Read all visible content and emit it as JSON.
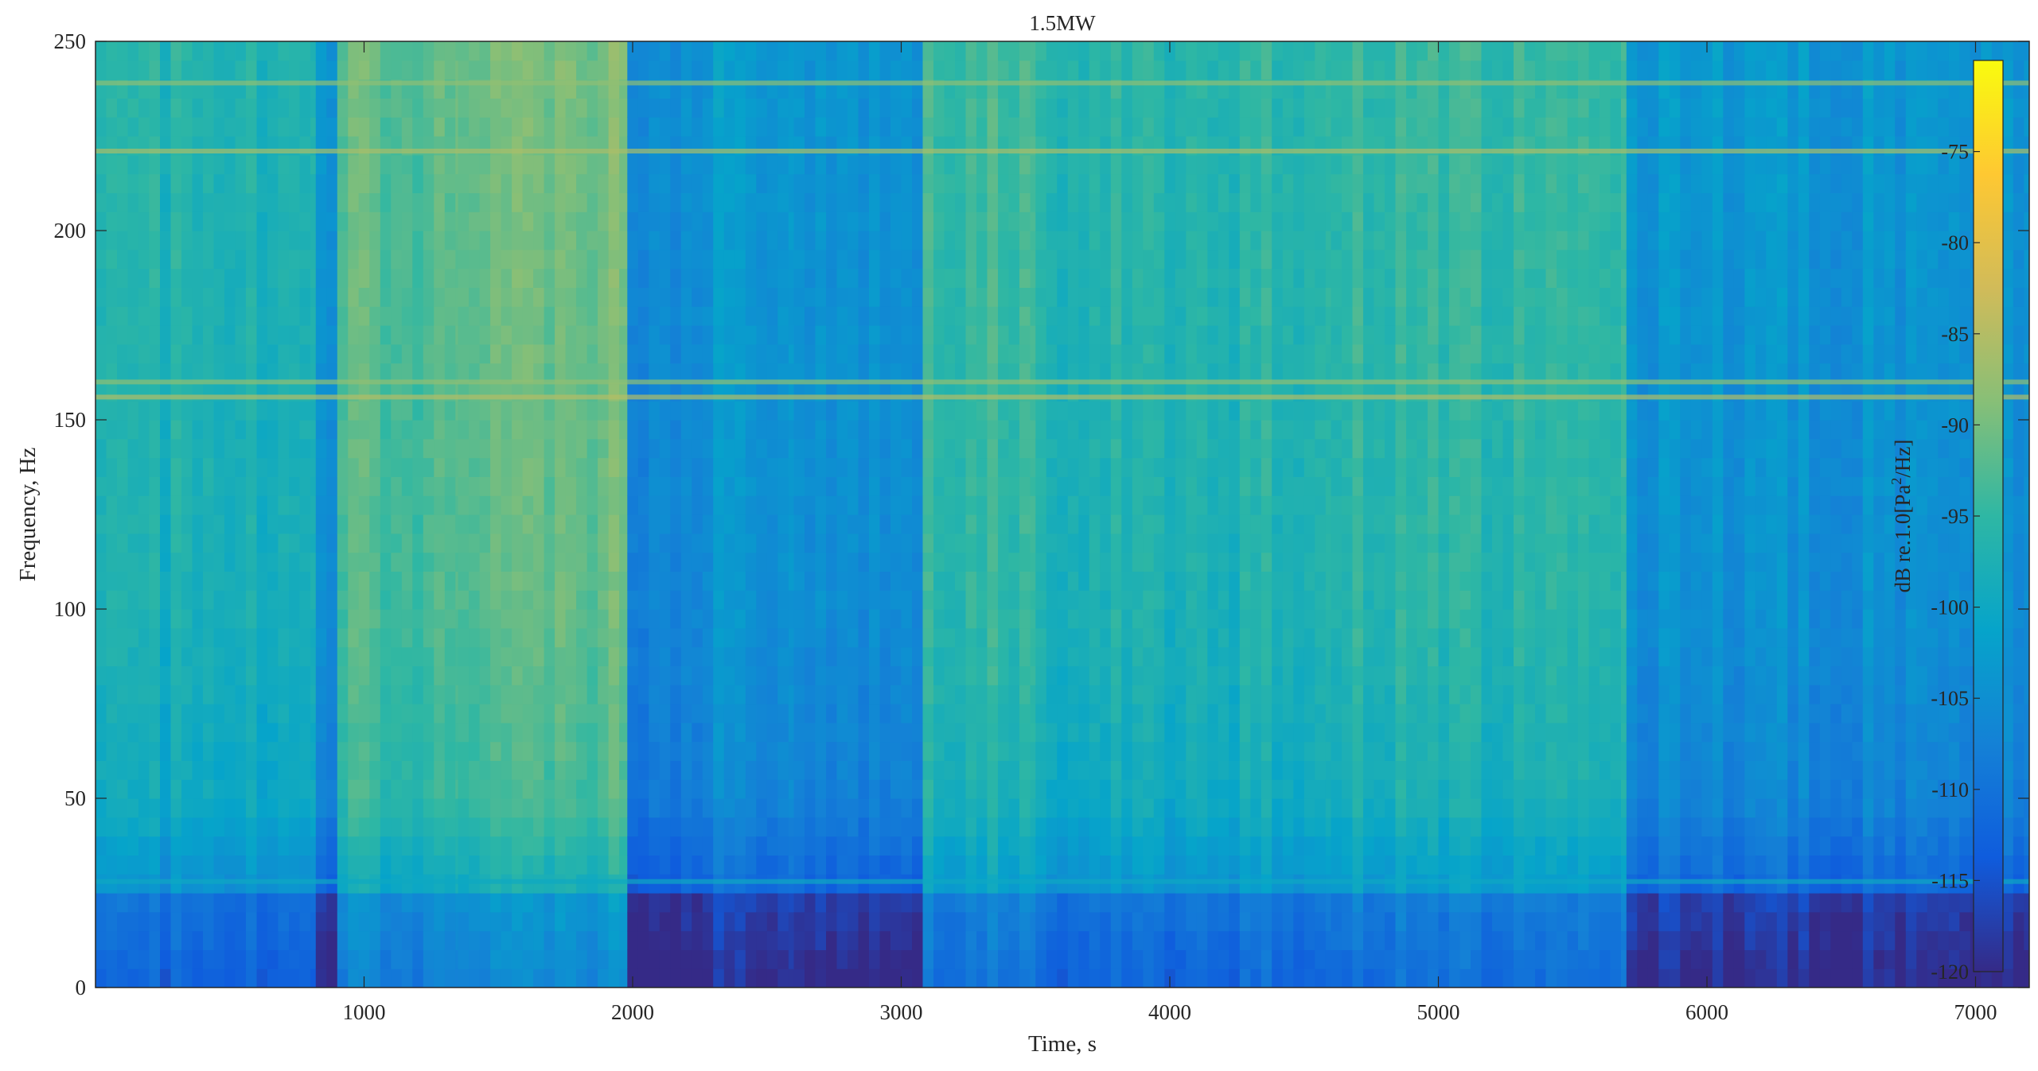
{
  "chart_data": {
    "type": "heatmap",
    "title": "1.5MW",
    "xlabel": "Time, s",
    "ylabel": "Frequency, Hz",
    "xlim": [
      0,
      7200
    ],
    "ylim": [
      0,
      250
    ],
    "xticks": [
      1000,
      2000,
      3000,
      4000,
      5000,
      6000,
      7000
    ],
    "yticks": [
      0,
      50,
      100,
      150,
      200,
      250
    ],
    "colorbar": {
      "label_prefix": "dB re.1.0[Pa",
      "label_sup": "2",
      "label_suffix": "/Hz]",
      "range": [
        -120,
        -70
      ],
      "ticks": [
        -75,
        -80,
        -85,
        -90,
        -95,
        -100,
        -105,
        -110,
        -115,
        -120
      ],
      "colormap": "parula"
    },
    "time_segments": [
      {
        "start": 0,
        "end": 820,
        "broadband_level_db": -97
      },
      {
        "start": 820,
        "end": 900,
        "broadband_level_db": -104
      },
      {
        "start": 900,
        "end": 1350,
        "broadband_level_db": -92
      },
      {
        "start": 1350,
        "end": 1980,
        "broadband_level_db": -90
      },
      {
        "start": 1980,
        "end": 2300,
        "broadband_level_db": -106
      },
      {
        "start": 2300,
        "end": 2600,
        "broadband_level_db": -103
      },
      {
        "start": 2600,
        "end": 3080,
        "broadband_level_db": -105
      },
      {
        "start": 3080,
        "end": 3500,
        "broadband_level_db": -94
      },
      {
        "start": 3500,
        "end": 4600,
        "broadband_level_db": -96
      },
      {
        "start": 4600,
        "end": 5700,
        "broadband_level_db": -95
      },
      {
        "start": 5700,
        "end": 7200,
        "broadband_level_db": -104
      }
    ],
    "tonal_lines_hz": [
      {
        "freq": 28,
        "level_db": -100
      },
      {
        "freq": 156,
        "level_db": -85
      },
      {
        "freq": 160,
        "level_db": -88
      },
      {
        "freq": 221,
        "level_db": -86
      },
      {
        "freq": 239,
        "level_db": -88
      }
    ]
  }
}
